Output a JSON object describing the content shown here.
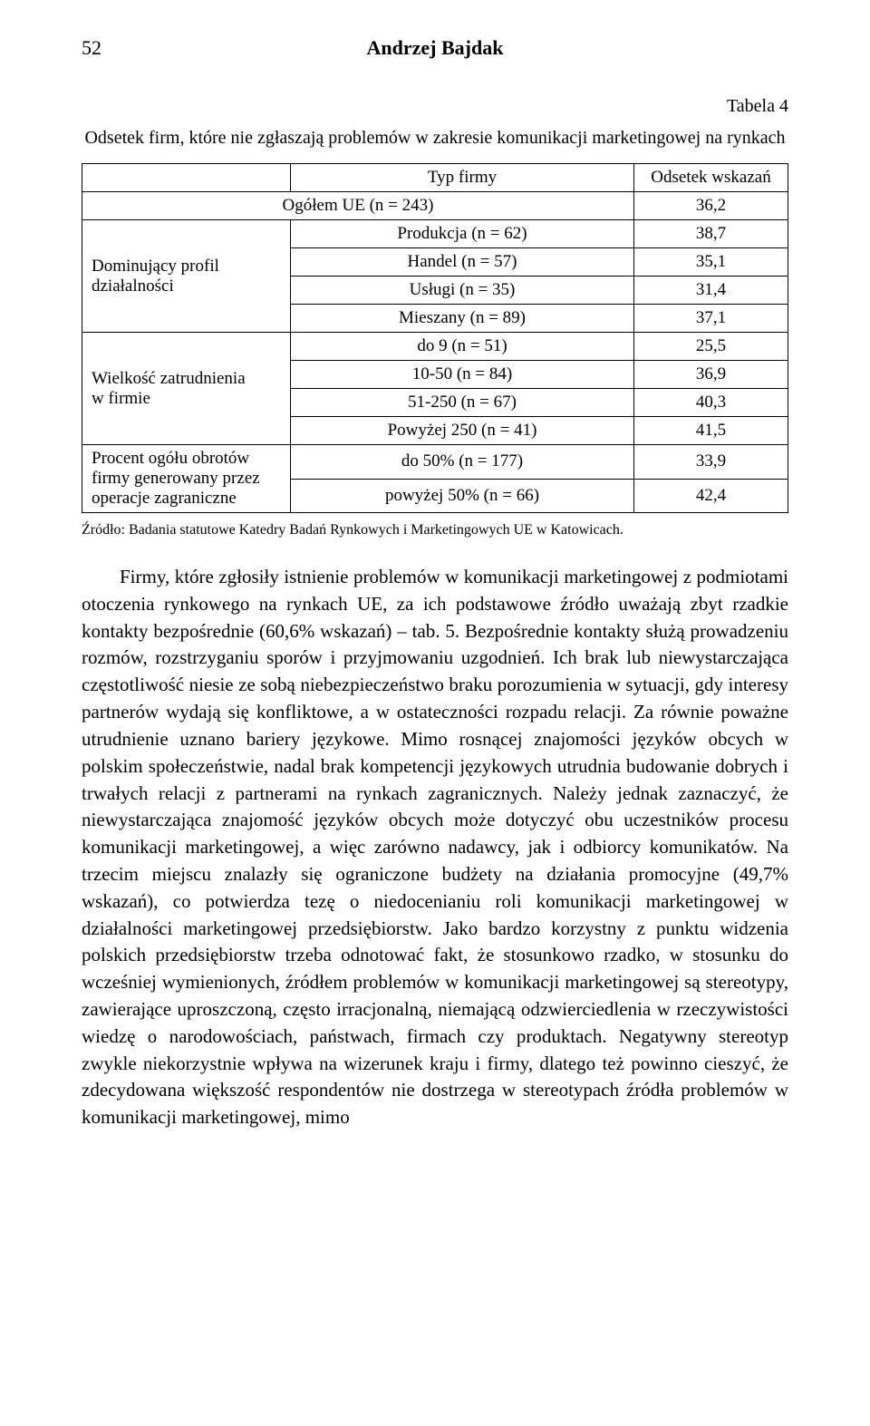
{
  "page_number": "52",
  "author": "Andrzej Bajdak",
  "tabela_label": "Tabela 4",
  "table_caption": "Odsetek firm, które nie zgłaszają problemów w zakresie komunikacji marketingowej na rynkach",
  "table": {
    "head": {
      "c1": "Typ firmy",
      "c2": "Odsetek wskazań"
    },
    "row_total": {
      "label": "Ogółem UE (n = 243)",
      "val": "36,2"
    },
    "groups": [
      {
        "label": "Dominujący profil działalności",
        "rows": [
          {
            "c1": "Produkcja (n = 62)",
            "c2": "38,7"
          },
          {
            "c1": "Handel (n = 57)",
            "c2": "35,1"
          },
          {
            "c1": "Usługi (n = 35)",
            "c2": "31,4"
          },
          {
            "c1": "Mieszany (n = 89)",
            "c2": "37,1"
          }
        ]
      },
      {
        "label": "Wielkość zatrudnienia w firmie",
        "rows": [
          {
            "c1": "do 9 (n = 51)",
            "c2": "25,5"
          },
          {
            "c1": "10-50 (n = 84)",
            "c2": "36,9"
          },
          {
            "c1": "51-250 (n = 67)",
            "c2": "40,3"
          },
          {
            "c1": "Powyżej 250 (n = 41)",
            "c2": "41,5"
          }
        ]
      },
      {
        "label": "Procent ogółu obrotów firmy generowany przez operacje zagraniczne",
        "rows": [
          {
            "c1": "do 50% (n = 177)",
            "c2": "33,9"
          },
          {
            "c1": "powyżej 50% (n = 66)",
            "c2": "42,4"
          }
        ]
      }
    ]
  },
  "source": "Źródło: Badania statutowe Katedry Badań Rynkowych i Marketingowych UE w Katowicach.",
  "body": "Firmy, które zgłosiły istnienie problemów w komunikacji marketingowej z podmiotami otoczenia rynkowego na rynkach UE, za ich podstawowe źródło uważają zbyt rzadkie kontakty bezpośrednie (60,6% wskazań) – tab. 5. Bezpośrednie kontakty służą prowadzeniu rozmów, rozstrzyganiu sporów i przyjmowaniu uzgodnień. Ich brak lub niewystarczająca częstotliwość niesie ze sobą niebezpieczeństwo braku porozumienia w sytuacji, gdy interesy partnerów wydają się konfliktowe, a w ostateczności rozpadu relacji. Za równie poważne utrudnienie uznano bariery językowe. Mimo rosnącej znajomości języków obcych w polskim społeczeństwie, nadal brak kompetencji językowych utrudnia budowanie dobrych i trwałych relacji z partnerami na rynkach zagranicznych. Należy jednak zaznaczyć, że niewystarczająca znajomość języków obcych może dotyczyć obu uczestników procesu komunikacji marketingowej, a więc zarówno nadawcy, jak i odbiorcy komunikatów. Na trzecim miejscu znalazły się ograniczone budżety na działania promocyjne (49,7% wskazań), co potwierdza tezę o niedocenianiu roli komunikacji marketingowej w działalności marketingowej przedsiębiorstw. Jako bardzo korzystny z punktu widzenia polskich przedsiębiorstw trzeba odnotować fakt, że stosunkowo rzadko, w stosunku do wcześniej wymienionych, źródłem problemów w komunikacji marketingowej są stereotypy, zawierające uproszczoną, często irracjonalną, niemającą odzwierciedlenia w rzeczywistości wiedzę o narodowościach, państwach, firmach czy produktach. Negatywny stereotyp zwykle niekorzystnie wpływa na wizerunek kraju i firmy, dlatego też powinno cieszyć, że zdecydowana większość respondentów nie dostrzega w stereotypach źródła problemów w komunikacji marketingowej, mimo"
}
